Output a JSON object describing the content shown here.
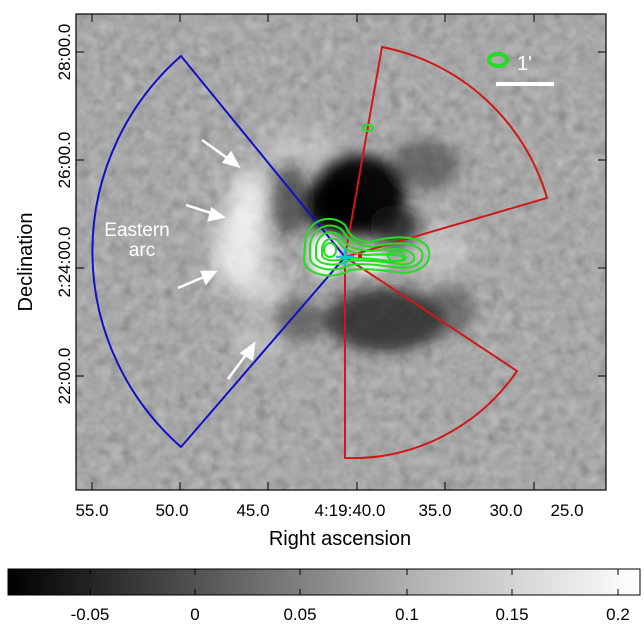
{
  "figure": {
    "xlabel": "Right ascension",
    "ylabel": "Declination",
    "ra_ticks": [
      "55.0",
      "50.0",
      "45.0",
      "4:19:40.0",
      "35.0",
      "30.0",
      "25.0"
    ],
    "dec_ticks": [
      "28:00.0",
      "26:00.0",
      "2:24:00.0",
      "22:00.0"
    ],
    "annotation_line1": "Eastern",
    "annotation_line2": "arc",
    "scalebar_label": "1'",
    "colorbar": {
      "ticks": [
        "-0.05",
        "0",
        "0.05",
        "0.1",
        "0.15",
        "0.2"
      ],
      "colormap": "grayscale"
    },
    "colors": {
      "eastern_sector": "#1010c8",
      "western_sectors": "#d01818",
      "contours": "#22dd22",
      "center_marker": "#00c8e0",
      "arrows": "#ffffff"
    }
  }
}
